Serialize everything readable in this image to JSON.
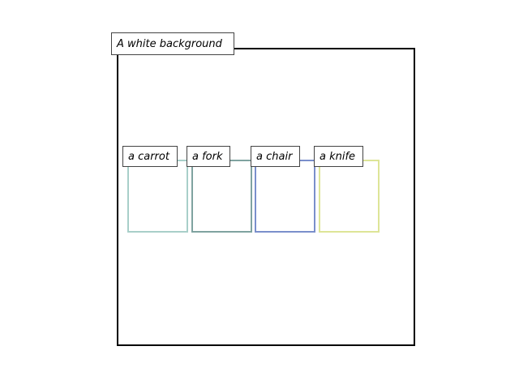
{
  "background_label": "A white background",
  "objects": [
    {
      "label": "a carrot",
      "color": "#a8cfc9"
    },
    {
      "label": "a fork",
      "color": "#7fa3a0"
    },
    {
      "label": "a chair",
      "color": "#7a8fcb"
    },
    {
      "label": "a knife",
      "color": "#dde597"
    }
  ]
}
